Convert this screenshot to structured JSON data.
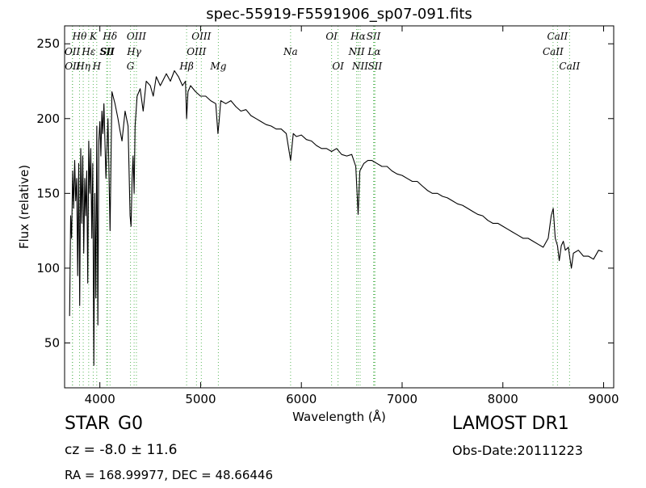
{
  "chart_data": {
    "type": "line",
    "title": "spec-55919-F5591906_sp07-091.fits",
    "xlabel": "Wavelength (Å)",
    "ylabel": "Flux (relative)",
    "xlim": [
      3650,
      9100
    ],
    "ylim": [
      20,
      262
    ],
    "xticks": [
      4000,
      5000,
      6000,
      7000,
      8000,
      9000
    ],
    "yticks": [
      50,
      100,
      150,
      200,
      250
    ],
    "grid": false,
    "series": [
      {
        "color": "#000000",
        "x": [
          3700,
          3710,
          3720,
          3730,
          3740,
          3750,
          3760,
          3770,
          3780,
          3790,
          3800,
          3810,
          3820,
          3830,
          3840,
          3850,
          3860,
          3870,
          3880,
          3890,
          3900,
          3910,
          3920,
          3930,
          3940,
          3950,
          3960,
          3970,
          3980,
          3990,
          4000,
          4010,
          4020,
          4030,
          4040,
          4060,
          4080,
          4101,
          4120,
          4150,
          4180,
          4200,
          4220,
          4250,
          4280,
          4300,
          4310,
          4320,
          4330,
          4340,
          4350,
          4370,
          4400,
          4430,
          4460,
          4500,
          4530,
          4560,
          4600,
          4630,
          4660,
          4700,
          4740,
          4780,
          4820,
          4850,
          4861,
          4875,
          4900,
          4950,
          5000,
          5050,
          5100,
          5150,
          5172,
          5183,
          5200,
          5250,
          5300,
          5350,
          5400,
          5450,
          5500,
          5550,
          5600,
          5650,
          5700,
          5750,
          5800,
          5850,
          5893,
          5920,
          5950,
          6000,
          6050,
          6100,
          6150,
          6200,
          6250,
          6300,
          6350,
          6400,
          6450,
          6500,
          6540,
          6563,
          6580,
          6620,
          6660,
          6700,
          6750,
          6800,
          6850,
          6900,
          6950,
          7000,
          7050,
          7100,
          7150,
          7200,
          7250,
          7300,
          7350,
          7400,
          7450,
          7500,
          7550,
          7600,
          7650,
          7700,
          7750,
          7800,
          7850,
          7900,
          7950,
          8000,
          8050,
          8100,
          8150,
          8200,
          8250,
          8300,
          8350,
          8400,
          8450,
          8480,
          8500,
          8520,
          8542,
          8560,
          8580,
          8600,
          8620,
          8650,
          8662,
          8680,
          8700,
          8750,
          8800,
          8850,
          8900,
          8950,
          8990
        ],
        "y": [
          68,
          135,
          120,
          165,
          140,
          172,
          145,
          160,
          95,
          170,
          75,
          180,
          130,
          175,
          110,
          160,
          135,
          165,
          90,
          185,
          150,
          180,
          120,
          170,
          35,
          150,
          80,
          195,
          62,
          185,
          198,
          175,
          205,
          190,
          210,
          160,
          200,
          125,
          218,
          210,
          200,
          192,
          185,
          205,
          195,
          135,
          128,
          160,
          175,
          150,
          195,
          215,
          220,
          205,
          225,
          222,
          215,
          228,
          222,
          226,
          230,
          225,
          232,
          228,
          222,
          225,
          200,
          218,
          222,
          218,
          215,
          215,
          212,
          210,
          190,
          198,
          212,
          210,
          212,
          208,
          205,
          206,
          202,
          200,
          198,
          196,
          195,
          193,
          193,
          190,
          172,
          190,
          188,
          189,
          186,
          185,
          182,
          180,
          180,
          178,
          180,
          176,
          175,
          176,
          168,
          136,
          165,
          170,
          172,
          172,
          170,
          168,
          168,
          165,
          163,
          162,
          160,
          158,
          158,
          155,
          152,
          150,
          150,
          148,
          147,
          145,
          143,
          142,
          140,
          138,
          136,
          135,
          132,
          130,
          130,
          128,
          126,
          124,
          122,
          120,
          120,
          118,
          116,
          114,
          120,
          135,
          140,
          120,
          115,
          105,
          115,
          118,
          112,
          114,
          108,
          100,
          110,
          112,
          108,
          108,
          106,
          112,
          111
        ]
      }
    ],
    "line_markers": [
      {
        "label": "Hθ",
        "x": 3798,
        "row": 0
      },
      {
        "label": "OII",
        "x": 3727,
        "row": 1
      },
      {
        "label": "OII",
        "x": 3729,
        "row": 2
      },
      {
        "label": "Hη",
        "x": 3835,
        "row": 2
      },
      {
        "label": "K",
        "x": 3934,
        "row": 0
      },
      {
        "label": "Hε",
        "x": 3889,
        "row": 1
      },
      {
        "label": "H",
        "x": 3969,
        "row": 2
      },
      {
        "label": "SII",
        "x": 4068,
        "row": 1
      },
      {
        "label": "SII",
        "x": 4076,
        "row": 1
      },
      {
        "label": "Hδ",
        "x": 4101,
        "row": 0
      },
      {
        "label": "OIII",
        "x": 4363,
        "row": 0
      },
      {
        "label": "Hγ",
        "x": 4340,
        "row": 1
      },
      {
        "label": "G",
        "x": 4304,
        "row": 2
      },
      {
        "label": "OIII",
        "x": 5007,
        "row": 0
      },
      {
        "label": "OIII",
        "x": 4959,
        "row": 1
      },
      {
        "label": "Hβ",
        "x": 4861,
        "row": 2
      },
      {
        "label": "Mg",
        "x": 5176,
        "row": 2
      },
      {
        "label": "Na",
        "x": 5893,
        "row": 1
      },
      {
        "label": "OI",
        "x": 6300,
        "row": 0
      },
      {
        "label": "OI",
        "x": 6364,
        "row": 2
      },
      {
        "label": "Hα",
        "x": 6563,
        "row": 0
      },
      {
        "label": "NII",
        "x": 6548,
        "row": 1
      },
      {
        "label": "NII",
        "x": 6583,
        "row": 2
      },
      {
        "label": "SII",
        "x": 6716,
        "row": 0
      },
      {
        "label": "Lα",
        "x": 6723,
        "row": 1
      },
      {
        "label": "SII",
        "x": 6731,
        "row": 2
      },
      {
        "label": "CaII",
        "x": 8542,
        "row": 0
      },
      {
        "label": "CaII",
        "x": 8498,
        "row": 1
      },
      {
        "label": "CaII",
        "x": 8662,
        "row": 2
      }
    ],
    "colors": {
      "spectrum": "#000000",
      "marker": "#5cb85c"
    }
  },
  "footer": {
    "object_class": "STAR",
    "subclass": "G0",
    "survey": "LAMOST DR1",
    "redshift": "cz = -8.0  ± 11.6",
    "obs_date": "Obs-Date:20111223",
    "coords": "RA = 168.99977, DEC = 48.66446"
  }
}
